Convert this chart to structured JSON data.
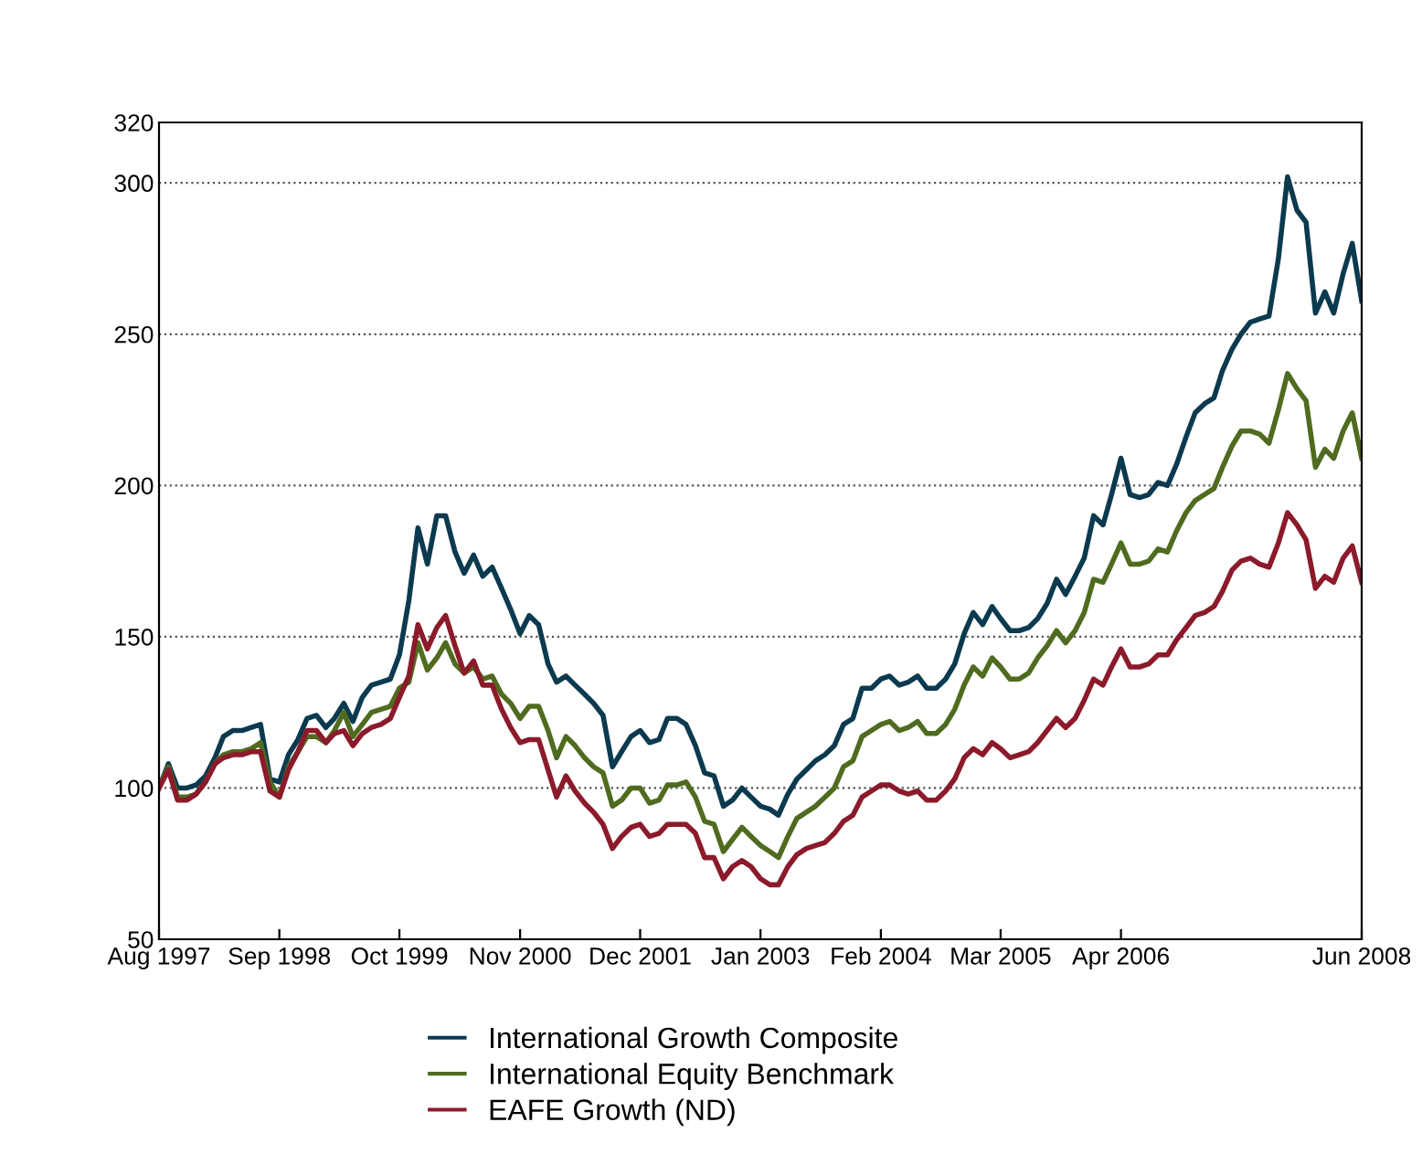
{
  "chart_data": {
    "type": "line",
    "x": [
      "1997-08",
      "1997-09",
      "1997-10",
      "1997-11",
      "1997-12",
      "1998-01",
      "1998-02",
      "1998-03",
      "1998-04",
      "1998-05",
      "1998-06",
      "1998-07",
      "1998-08",
      "1998-09",
      "1998-10",
      "1998-11",
      "1998-12",
      "1999-01",
      "1999-02",
      "1999-03",
      "1999-04",
      "1999-05",
      "1999-06",
      "1999-07",
      "1999-08",
      "1999-09",
      "1999-10",
      "1999-11",
      "1999-12",
      "2000-01",
      "2000-02",
      "2000-03",
      "2000-04",
      "2000-05",
      "2000-06",
      "2000-07",
      "2000-08",
      "2000-09",
      "2000-10",
      "2000-11",
      "2000-12",
      "2001-01",
      "2001-02",
      "2001-03",
      "2001-04",
      "2001-05",
      "2001-06",
      "2001-07",
      "2001-08",
      "2001-09",
      "2001-10",
      "2001-11",
      "2001-12",
      "2002-01",
      "2002-02",
      "2002-03",
      "2002-04",
      "2002-05",
      "2002-06",
      "2002-07",
      "2002-08",
      "2002-09",
      "2002-10",
      "2002-11",
      "2002-12",
      "2003-01",
      "2003-02",
      "2003-03",
      "2003-04",
      "2003-05",
      "2003-06",
      "2003-07",
      "2003-08",
      "2003-09",
      "2003-10",
      "2003-11",
      "2003-12",
      "2004-01",
      "2004-02",
      "2004-03",
      "2004-04",
      "2004-05",
      "2004-06",
      "2004-07",
      "2004-08",
      "2004-09",
      "2004-10",
      "2004-11",
      "2004-12",
      "2005-01",
      "2005-02",
      "2005-03",
      "2005-04",
      "2005-05",
      "2005-06",
      "2005-07",
      "2005-08",
      "2005-09",
      "2005-10",
      "2005-11",
      "2005-12",
      "2006-01",
      "2006-02",
      "2006-03",
      "2006-04",
      "2006-05",
      "2006-06",
      "2006-07",
      "2006-08",
      "2006-09",
      "2006-10",
      "2006-11",
      "2006-12",
      "2007-01",
      "2007-02",
      "2007-03",
      "2007-04",
      "2007-05",
      "2007-06",
      "2007-07",
      "2007-08",
      "2007-09",
      "2007-10",
      "2007-11",
      "2007-12",
      "2008-01",
      "2008-02",
      "2008-03",
      "2008-04",
      "2008-05",
      "2008-06"
    ],
    "series": [
      {
        "name": "International Growth Composite",
        "color": "#0b3a4f",
        "values": [
          100,
          108,
          100,
          100,
          101,
          104,
          110,
          117,
          119,
          119,
          120,
          121,
          103,
          102,
          111,
          116,
          123,
          124,
          120,
          123,
          128,
          122,
          130,
          134,
          135,
          136,
          144,
          162,
          186,
          174,
          190,
          190,
          178,
          171,
          177,
          170,
          173,
          166,
          159,
          151,
          157,
          154,
          141,
          135,
          137,
          134,
          131,
          128,
          124,
          107,
          112,
          117,
          119,
          115,
          116,
          123,
          123,
          121,
          114,
          105,
          104,
          94,
          96,
          100,
          97,
          94,
          93,
          91,
          98,
          103,
          106,
          109,
          111,
          114,
          121,
          123,
          133,
          133,
          136,
          137,
          134,
          135,
          137,
          133,
          133,
          136,
          141,
          151,
          158,
          154,
          160,
          156,
          152,
          152,
          153,
          156,
          161,
          169,
          164,
          170,
          176,
          190,
          187,
          197,
          209,
          197,
          196,
          197,
          201,
          200,
          207,
          216,
          224,
          227,
          229,
          238,
          245,
          250,
          254,
          255,
          256,
          275,
          302,
          291,
          287,
          257,
          264,
          257,
          270,
          280,
          261
        ]
      },
      {
        "name": "International Equity Benchmark",
        "color": "#4f6b1f",
        "values": [
          100,
          107,
          97,
          97,
          98,
          102,
          108,
          111,
          112,
          112,
          113,
          115,
          102,
          97,
          107,
          112,
          117,
          117,
          115,
          119,
          125,
          117,
          121,
          125,
          126,
          127,
          133,
          135,
          148,
          139,
          143,
          148,
          141,
          138,
          140,
          136,
          137,
          131,
          128,
          123,
          127,
          127,
          119,
          110,
          117,
          114,
          110,
          107,
          105,
          94,
          96,
          100,
          100,
          95,
          96,
          101,
          101,
          102,
          97,
          89,
          88,
          79,
          83,
          87,
          84,
          81,
          79,
          77,
          84,
          90,
          92,
          94,
          97,
          100,
          107,
          109,
          117,
          119,
          121,
          122,
          119,
          120,
          122,
          118,
          118,
          121,
          126,
          134,
          140,
          137,
          143,
          140,
          136,
          136,
          138,
          143,
          147,
          152,
          148,
          152,
          158,
          169,
          168,
          174,
          181,
          174,
          174,
          175,
          179,
          178,
          185,
          191,
          195,
          197,
          199,
          206,
          213,
          218,
          218,
          217,
          214,
          225,
          237,
          232,
          228,
          206,
          212,
          209,
          218,
          224,
          209
        ]
      },
      {
        "name": "EAFE Growth (ND)",
        "color": "#8b1a2a",
        "values": [
          100,
          106,
          96,
          96,
          98,
          102,
          108,
          110,
          111,
          111,
          112,
          112,
          99,
          97,
          106,
          112,
          119,
          119,
          115,
          118,
          119,
          114,
          118,
          120,
          121,
          123,
          130,
          137,
          154,
          146,
          153,
          157,
          147,
          138,
          142,
          134,
          134,
          126,
          120,
          115,
          116,
          116,
          106,
          97,
          104,
          99,
          95,
          92,
          88,
          80,
          84,
          87,
          88,
          84,
          85,
          88,
          88,
          88,
          85,
          77,
          77,
          70,
          74,
          76,
          74,
          70,
          68,
          68,
          74,
          78,
          80,
          81,
          82,
          85,
          89,
          91,
          97,
          99,
          101,
          101,
          99,
          98,
          99,
          96,
          96,
          99,
          103,
          110,
          113,
          111,
          115,
          113,
          110,
          111,
          112,
          115,
          119,
          123,
          120,
          123,
          129,
          136,
          134,
          140,
          146,
          140,
          140,
          141,
          144,
          144,
          149,
          153,
          157,
          158,
          160,
          165,
          172,
          175,
          176,
          174,
          173,
          181,
          191,
          187,
          182,
          166,
          170,
          168,
          176,
          180,
          168
        ]
      }
    ],
    "xlim": [
      "1997-08",
      "2008-06"
    ],
    "xticks": [
      {
        "value": "1997-08",
        "label": "Aug 1997"
      },
      {
        "value": "1998-09",
        "label": "Sep 1998"
      },
      {
        "value": "1999-10",
        "label": "Oct 1999"
      },
      {
        "value": "2000-11",
        "label": "Nov 2000"
      },
      {
        "value": "2001-12",
        "label": "Dec 2001"
      },
      {
        "value": "2003-01",
        "label": "Jan 2003"
      },
      {
        "value": "2004-02",
        "label": "Feb 2004"
      },
      {
        "value": "2005-03",
        "label": "Mar 2005"
      },
      {
        "value": "2006-04",
        "label": "Apr 2006"
      },
      {
        "value": "2008-06",
        "label": "Jun 2008"
      }
    ],
    "ylim": [
      50,
      320
    ],
    "yticks": [
      50,
      100,
      150,
      200,
      250,
      300,
      320
    ],
    "grid": "y",
    "legend": "bottom",
    "marker": "none",
    "line_style": "solid"
  }
}
